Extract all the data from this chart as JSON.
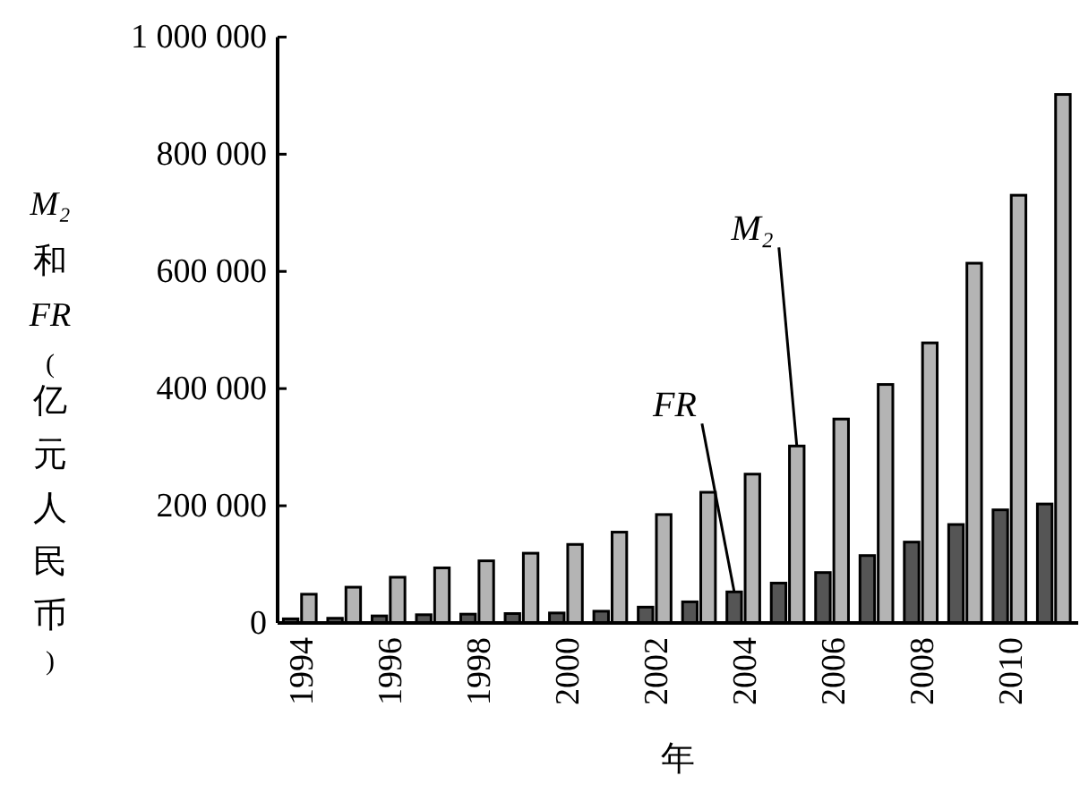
{
  "chart_data": {
    "type": "bar",
    "ylabel": "M₂和FR(亿元人民币)",
    "xlabel": "年",
    "x": [
      1994,
      1995,
      1996,
      1997,
      1998,
      1999,
      2000,
      2001,
      2002,
      2003,
      2004,
      2005,
      2006,
      2007,
      2008,
      2009,
      2010,
      2011
    ],
    "series": [
      {
        "name": "FR",
        "color": "#555555",
        "values": [
          7000,
          8000,
          12000,
          14000,
          15000,
          16000,
          17000,
          20000,
          27000,
          36000,
          53000,
          68000,
          86000,
          115000,
          138000,
          168000,
          193000,
          203000
        ]
      },
      {
        "name": "M₂",
        "color": "#b4b4b4",
        "values": [
          49000,
          61000,
          78000,
          94000,
          106000,
          119000,
          134000,
          155000,
          185000,
          223000,
          254000,
          302000,
          348000,
          407000,
          478000,
          614000,
          730000,
          902000
        ]
      }
    ],
    "xlim": [
      1993.5,
      2011.55
    ],
    "xticks": [
      1994,
      1996,
      1998,
      2000,
      2002,
      2004,
      2006,
      2008,
      2010
    ],
    "ylim": [
      0,
      1000000
    ],
    "yticks": [
      {
        "value": 0,
        "label": "0"
      },
      {
        "value": 200000,
        "label": "200 000"
      },
      {
        "value": 400000,
        "label": "400 000"
      },
      {
        "value": 600000,
        "label": "600 000"
      },
      {
        "value": 800000,
        "label": "800 000"
      },
      {
        "value": 1000000,
        "label": "1 000 000"
      }
    ],
    "grid": false,
    "legend": false
  }
}
